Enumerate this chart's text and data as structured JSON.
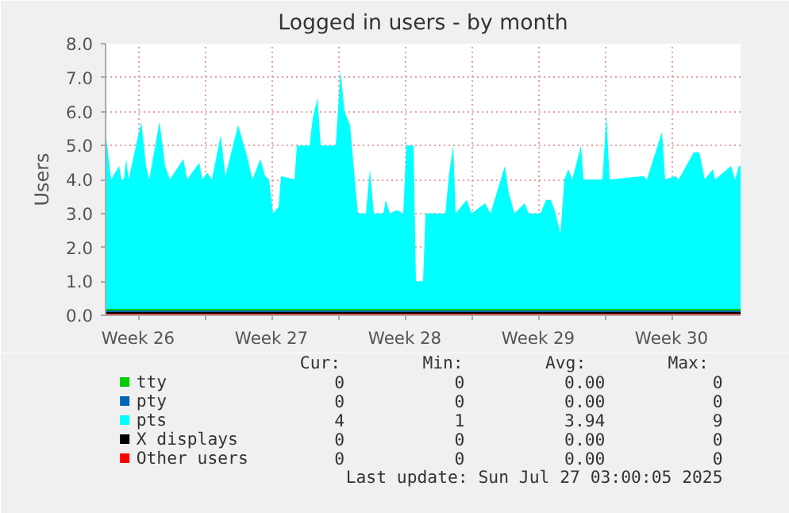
{
  "chart_data": {
    "type": "area",
    "title": "Logged in users - by month",
    "ylabel": "Users",
    "xlim": [
      "2025-06-23T19:00",
      "2025-07-27T03:00"
    ],
    "ylim": [
      0,
      8
    ],
    "xticks": [
      {
        "value": "2025-06-25T12:00",
        "label": "Week 26"
      },
      {
        "value": "2025-06-29T00:00",
        "label": null
      },
      {
        "value": "2025-07-02T12:00",
        "label": "Week 27"
      },
      {
        "value": "2025-07-06T00:00",
        "label": null
      },
      {
        "value": "2025-07-09T12:00",
        "label": "Week 28"
      },
      {
        "value": "2025-07-13T00:00",
        "label": null
      },
      {
        "value": "2025-07-16T12:00",
        "label": "Week 29"
      },
      {
        "value": "2025-07-20T00:00",
        "label": null
      },
      {
        "value": "2025-07-23T12:00",
        "label": "Week 30"
      }
    ],
    "yticks": [
      {
        "value": 0,
        "label": "0.0"
      },
      {
        "value": 1,
        "label": "1.0"
      },
      {
        "value": 2,
        "label": "2.0"
      },
      {
        "value": 3,
        "label": "3.0"
      },
      {
        "value": 4,
        "label": "4.0"
      },
      {
        "value": 5,
        "label": "5.0"
      },
      {
        "value": 6,
        "label": "6.0"
      },
      {
        "value": 7,
        "label": "7.0"
      },
      {
        "value": 8,
        "label": "8.0"
      }
    ],
    "grid": true,
    "legend": "bottom",
    "series": [
      {
        "name": "tty",
        "type": "line",
        "color": "#00cc00",
        "x": [
          "2025-06-23T19:00",
          "2025-07-27T03:00"
        ],
        "values": [
          0,
          0
        ]
      },
      {
        "name": "pty",
        "type": "line",
        "color": "#0066b3",
        "x": [
          "2025-06-23T19:00",
          "2025-07-27T03:00"
        ],
        "values": [
          0,
          0
        ]
      },
      {
        "name": "pts",
        "color": "#00ffff",
        "x": [
          "2025-06-23T19:00",
          "2025-06-24T02:00",
          "2025-06-24T12:00",
          "2025-06-24T15:00",
          "2025-06-24T18:00",
          "2025-06-24T21:00",
          "2025-06-25T00:00",
          "2025-06-25T16:00",
          "2025-06-25T22:00",
          "2025-06-26T02:00",
          "2025-06-26T15:00",
          "2025-06-26T22:00",
          "2025-06-27T04:00",
          "2025-06-27T21:00",
          "2025-06-28T02:00",
          "2025-06-28T17:00",
          "2025-06-28T21:00",
          "2025-06-29T03:00",
          "2025-06-29T09:00",
          "2025-06-29T20:00",
          "2025-06-30T02:00",
          "2025-06-30T18:00",
          "2025-07-01T05:00",
          "2025-07-01T12:00",
          "2025-07-01T22:00",
          "2025-07-02T04:00",
          "2025-07-02T09:00",
          "2025-07-02T14:00",
          "2025-07-02T21:00",
          "2025-07-03T00:00",
          "2025-07-03T17:00",
          "2025-07-03T20:00",
          "2025-07-04T12:00",
          "2025-07-04T16:00",
          "2025-07-04T22:00",
          "2025-07-05T02:00",
          "2025-07-05T21:00",
          "2025-07-06T03:00",
          "2025-07-06T08:00",
          "2025-07-06T15:00",
          "2025-07-06T21:00",
          "2025-07-07T01:00",
          "2025-07-07T11:00",
          "2025-07-07T16:00",
          "2025-07-07T21:00",
          "2025-07-08T09:00",
          "2025-07-08T12:00",
          "2025-07-08T17:00",
          "2025-07-09T02:00",
          "2025-07-09T10:00",
          "2025-07-09T14:00",
          "2025-07-09T23:00",
          "2025-07-10T02:00",
          "2025-07-10T11:00",
          "2025-07-10T14:00",
          "2025-07-11T15:00",
          "2025-07-11T20:00",
          "2025-07-12T01:00",
          "2025-07-12T04:00",
          "2025-07-12T18:00",
          "2025-07-13T00:00",
          "2025-07-13T17:00",
          "2025-07-14T00:00",
          "2025-07-14T18:00",
          "2025-07-14T23:00",
          "2025-07-15T06:00",
          "2025-07-15T19:00",
          "2025-07-16T00:00",
          "2025-07-16T15:00",
          "2025-07-16T22:00",
          "2025-07-17T04:00",
          "2025-07-17T10:00",
          "2025-07-17T16:00",
          "2025-07-17T21:00",
          "2025-07-18T02:00",
          "2025-07-18T07:00",
          "2025-07-18T18:00",
          "2025-07-18T21:00",
          "2025-07-19T21:00",
          "2025-07-20T02:00",
          "2025-07-20T06:00",
          "2025-07-22T01:00",
          "2025-07-22T05:00",
          "2025-07-23T00:00",
          "2025-07-23T04:00",
          "2025-07-23T17:00",
          "2025-07-23T21:00",
          "2025-07-24T16:00",
          "2025-07-24T23:00",
          "2025-07-25T06:00",
          "2025-07-25T16:00",
          "2025-07-25T19:00",
          "2025-07-26T15:00",
          "2025-07-26T20:00",
          "2025-07-27T01:00",
          "2025-07-27T03:00"
        ],
        "values": [
          5.4,
          4.0,
          4.4,
          4.0,
          4.0,
          4.6,
          4.0,
          5.7,
          4.4,
          4.0,
          5.7,
          4.4,
          4.0,
          4.6,
          4.0,
          4.5,
          4.0,
          4.2,
          4.0,
          5.3,
          4.1,
          5.6,
          4.7,
          4.0,
          4.6,
          4.1,
          4.0,
          3.0,
          3.2,
          4.1,
          4.0,
          5.0,
          5.0,
          5.8,
          6.4,
          5.0,
          5.0,
          7.2,
          6.0,
          5.6,
          4.0,
          3.0,
          3.0,
          4.3,
          3.0,
          3.0,
          3.4,
          3.0,
          3.1,
          3.0,
          5.0,
          5.0,
          1.0,
          1.0,
          3.0,
          3.0,
          4.2,
          5.0,
          3.0,
          3.4,
          3.0,
          3.3,
          3.0,
          4.4,
          3.6,
          3.0,
          3.3,
          3.0,
          3.0,
          3.4,
          3.4,
          3.0,
          2.4,
          4.0,
          4.3,
          4.0,
          5.0,
          4.0,
          4.0,
          5.9,
          4.0,
          4.1,
          4.0,
          5.4,
          4.0,
          4.1,
          4.0,
          4.8,
          4.8,
          4.0,
          4.3,
          4.0,
          4.4,
          4.0,
          4.4,
          4.4
        ]
      },
      {
        "name": "X displays",
        "type": "line",
        "color": "#000000",
        "x": [
          "2025-06-23T19:00",
          "2025-07-27T03:00"
        ],
        "values": [
          0,
          0
        ]
      },
      {
        "name": "Other users",
        "type": "line",
        "color": "#ff0000",
        "x": [
          "2025-06-23T19:00",
          "2025-07-27T03:00"
        ],
        "values": [
          0,
          0
        ]
      }
    ],
    "annotations": [
      "Cur:",
      "Min:",
      "Avg:",
      "Max:",
      "0",
      "0",
      "0.00",
      "0",
      "0",
      "0",
      "0.00",
      "0",
      "4",
      "1",
      "3.94",
      "9",
      "0",
      "0",
      "0.00",
      "0",
      "0",
      "0",
      "0.00",
      "0",
      "Last update: Sun Jul 27 03:00:05 2025"
    ]
  }
}
